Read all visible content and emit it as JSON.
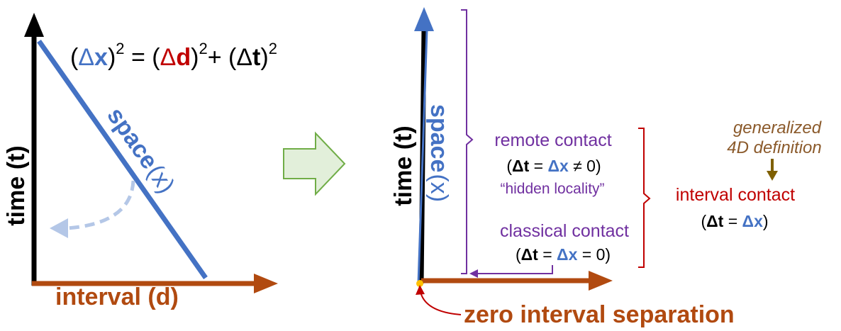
{
  "colors": {
    "black": "#000000",
    "space_blue": "#4472c4",
    "interval_brown": "#b14a10",
    "d_red": "#c00000",
    "contact_purple": "#7030a0",
    "interval_contact_red": "#c00000",
    "generalized_brown": "#8b5a2b",
    "arrow_green_fill": "#e2efda",
    "arrow_green_stroke": "#70ad47",
    "dashed_arrow": "#b4c7e7",
    "dot_yellow": "#ffc000",
    "olive_arrow": "#7f6000"
  },
  "left_panel": {
    "equation": {
      "open1": "(",
      "delta1": "Δ",
      "x": "x",
      "close1": ")",
      "exp1": "2",
      "equals": " = (",
      "delta2": "Δ",
      "d": "d",
      "close2": ")",
      "exp2": "2",
      "plus": "+ (",
      "delta3": "Δ",
      "t": "t",
      "close3": ")",
      "exp3": "2"
    },
    "time_axis_label": "time (t)",
    "interval_axis_label": "interval (d)",
    "space_label": "space",
    "space_var": "(x)"
  },
  "transition_arrow": "right-arrow-icon",
  "right_panel": {
    "time_axis_label": "time (t)",
    "space_label": "space",
    "space_var": "(x)",
    "remote_contact": {
      "title": "remote contact",
      "eq_open": "(",
      "eq_dt": "Δt",
      "eq_mid": " = ",
      "eq_dx": "Δx",
      "eq_end": " ≠ 0)",
      "note": "“hidden locality”"
    },
    "classical_contact": {
      "title": "classical contact",
      "eq_open": "(",
      "eq_dt": "Δt",
      "eq_mid": " = ",
      "eq_dx": "Δx",
      "eq_end": " = 0)"
    },
    "interval_contact": {
      "title": "interval contact",
      "eq_open": "(",
      "eq_dt": "Δt",
      "eq_mid": " = ",
      "eq_dx": "Δx",
      "eq_end": ")"
    },
    "generalized": {
      "line1": "generalized",
      "line2": "4D definition"
    },
    "zero_interval": "zero interval separation"
  }
}
